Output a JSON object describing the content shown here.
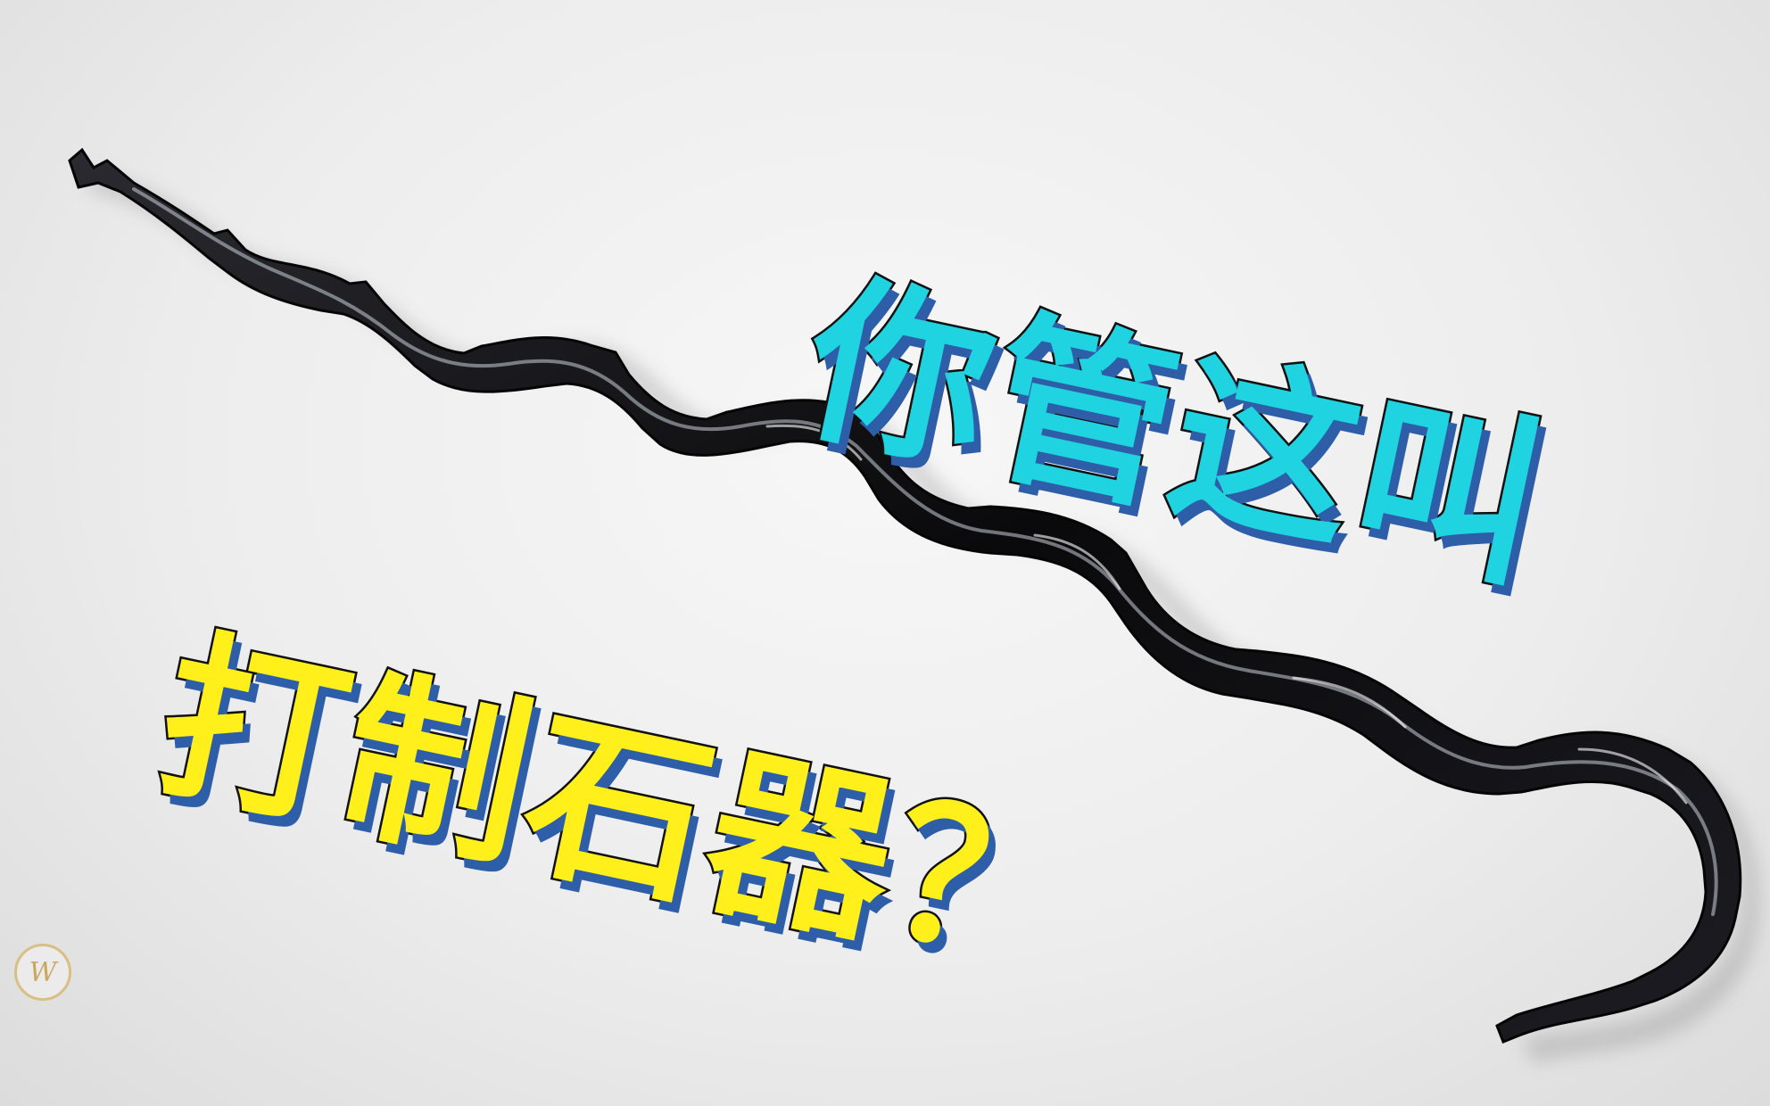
{
  "headline": {
    "line1": "你管这叫",
    "line2": "打制石器？"
  },
  "watermark": {
    "letter": "W"
  },
  "colors": {
    "line1_fill": "#1fd3e0",
    "line2_fill": "#ffef1a",
    "text_shadow": "#2f5ea8",
    "blade": "#0b0b0d",
    "background": "#ececec"
  },
  "icons": {
    "blade": "obsidian-blade-icon",
    "watermark": "watermark-logo-icon"
  }
}
